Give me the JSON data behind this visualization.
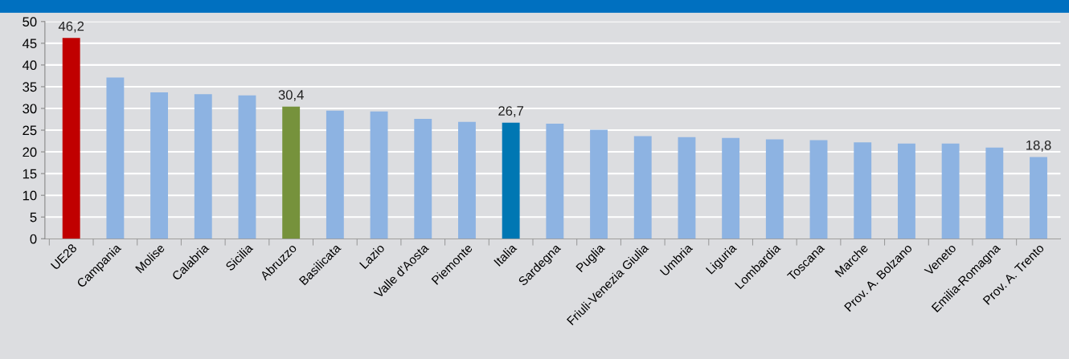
{
  "chart_data": {
    "type": "bar",
    "categories": [
      "UE28",
      "Campania",
      "Molise",
      "Calabria",
      "Sicilia",
      "Abruzzo",
      "Basilicata",
      "Lazio",
      "Valle d'Aosta",
      "Piemonte",
      "Italia",
      "Sardegna",
      "Puglia",
      "Friuli-Venezia Giulia",
      "Umbria",
      "Liguria",
      "Lombardia",
      "Toscana",
      "Marche",
      "Prov. A. Bolzano",
      "Veneto",
      "Emilia-Romagna",
      "Prov. A. Trento"
    ],
    "values": [
      46.2,
      37.1,
      33.7,
      33.3,
      33.0,
      30.4,
      29.5,
      29.3,
      27.6,
      26.9,
      26.7,
      26.5,
      25.1,
      23.6,
      23.4,
      23.2,
      22.9,
      22.7,
      22.2,
      21.9,
      21.9,
      21.0,
      18.8
    ],
    "colors": [
      "#c00000",
      "#8db3e2",
      "#8db3e2",
      "#8db3e2",
      "#8db3e2",
      "#76923c",
      "#8db3e2",
      "#8db3e2",
      "#8db3e2",
      "#8db3e2",
      "#0077b3",
      "#8db3e2",
      "#8db3e2",
      "#8db3e2",
      "#8db3e2",
      "#8db3e2",
      "#8db3e2",
      "#8db3e2",
      "#8db3e2",
      "#8db3e2",
      "#8db3e2",
      "#8db3e2",
      "#8db3e2"
    ],
    "value_labels": [
      "46,2",
      null,
      null,
      null,
      null,
      "30,4",
      null,
      null,
      null,
      null,
      "26,7",
      null,
      null,
      null,
      null,
      null,
      null,
      null,
      null,
      null,
      null,
      null,
      "18,8"
    ],
    "ylim": [
      0,
      50
    ],
    "yticks": [
      0,
      5,
      10,
      15,
      20,
      25,
      30,
      35,
      40,
      45,
      50
    ],
    "grid": "y",
    "legend": false
  }
}
